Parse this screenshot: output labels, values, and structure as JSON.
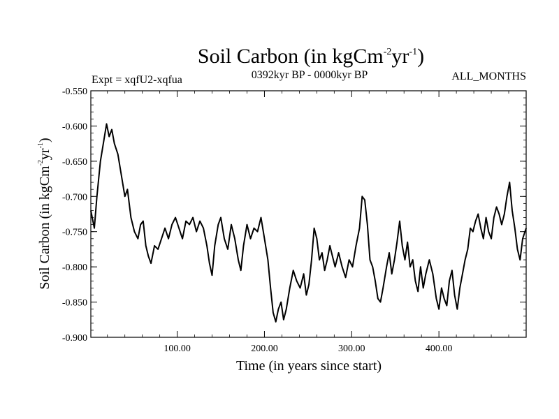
{
  "chart_data": {
    "type": "line",
    "title": {
      "main": "Soil Carbon (in kgCm",
      "sup1": "-2",
      "mid": "yr",
      "sup2": "-1",
      "end": ")"
    },
    "subtitle_left": "Expt = xqfU2-xqfua",
    "subtitle_center": "0392kyr BP - 0000kyr BP",
    "subtitle_right": "ALL_MONTHS",
    "xlabel": "Time (in years since start)",
    "ylabel": {
      "main": "Soil Carbon (in kgCm",
      "sup1": "-2",
      "mid": "yr",
      "sup2": "-1",
      "end": ")"
    },
    "xlim": [
      1,
      500
    ],
    "ylim": [
      -0.9,
      -0.55
    ],
    "xticks": [
      100,
      200,
      300,
      400
    ],
    "xtick_labels": [
      "100.00",
      "200.00",
      "300.00",
      "400.00"
    ],
    "yticks": [
      -0.55,
      -0.6,
      -0.65,
      -0.7,
      -0.75,
      -0.8,
      -0.85,
      -0.9
    ],
    "ytick_labels": [
      "-0.550",
      "-0.600",
      "-0.650",
      "-0.700",
      "-0.750",
      "-0.800",
      "-0.850",
      "-0.900"
    ],
    "series": [
      {
        "name": "Soil Carbon",
        "color": "#000000",
        "points": [
          [
            1,
            -0.72
          ],
          [
            5,
            -0.745
          ],
          [
            8,
            -0.7
          ],
          [
            12,
            -0.65
          ],
          [
            16,
            -0.62
          ],
          [
            19,
            -0.597
          ],
          [
            22,
            -0.615
          ],
          [
            25,
            -0.605
          ],
          [
            28,
            -0.625
          ],
          [
            32,
            -0.64
          ],
          [
            36,
            -0.67
          ],
          [
            40,
            -0.7
          ],
          [
            43,
            -0.69
          ],
          [
            47,
            -0.73
          ],
          [
            51,
            -0.75
          ],
          [
            55,
            -0.76
          ],
          [
            58,
            -0.74
          ],
          [
            61,
            -0.735
          ],
          [
            64,
            -0.77
          ],
          [
            67,
            -0.785
          ],
          [
            70,
            -0.795
          ],
          [
            74,
            -0.77
          ],
          [
            78,
            -0.775
          ],
          [
            82,
            -0.76
          ],
          [
            86,
            -0.745
          ],
          [
            90,
            -0.76
          ],
          [
            94,
            -0.74
          ],
          [
            98,
            -0.73
          ],
          [
            102,
            -0.745
          ],
          [
            106,
            -0.76
          ],
          [
            110,
            -0.735
          ],
          [
            114,
            -0.74
          ],
          [
            118,
            -0.73
          ],
          [
            122,
            -0.75
          ],
          [
            126,
            -0.735
          ],
          [
            130,
            -0.745
          ],
          [
            134,
            -0.77
          ],
          [
            137,
            -0.795
          ],
          [
            140,
            -0.812
          ],
          [
            143,
            -0.77
          ],
          [
            147,
            -0.74
          ],
          [
            150,
            -0.73
          ],
          [
            154,
            -0.76
          ],
          [
            158,
            -0.775
          ],
          [
            162,
            -0.74
          ],
          [
            166,
            -0.76
          ],
          [
            170,
            -0.79
          ],
          [
            173,
            -0.805
          ],
          [
            176,
            -0.77
          ],
          [
            180,
            -0.74
          ],
          [
            184,
            -0.76
          ],
          [
            188,
            -0.745
          ],
          [
            192,
            -0.75
          ],
          [
            196,
            -0.73
          ],
          [
            200,
            -0.76
          ],
          [
            204,
            -0.79
          ],
          [
            207,
            -0.83
          ],
          [
            210,
            -0.865
          ],
          [
            213,
            -0.878
          ],
          [
            216,
            -0.86
          ],
          [
            219,
            -0.85
          ],
          [
            222,
            -0.875
          ],
          [
            225,
            -0.86
          ],
          [
            229,
            -0.83
          ],
          [
            233,
            -0.805
          ],
          [
            237,
            -0.82
          ],
          [
            241,
            -0.83
          ],
          [
            245,
            -0.81
          ],
          [
            248,
            -0.84
          ],
          [
            251,
            -0.825
          ],
          [
            254,
            -0.79
          ],
          [
            257,
            -0.745
          ],
          [
            260,
            -0.76
          ],
          [
            263,
            -0.79
          ],
          [
            266,
            -0.78
          ],
          [
            269,
            -0.805
          ],
          [
            272,
            -0.79
          ],
          [
            275,
            -0.77
          ],
          [
            278,
            -0.785
          ],
          [
            281,
            -0.8
          ],
          [
            285,
            -0.78
          ],
          [
            289,
            -0.8
          ],
          [
            293,
            -0.815
          ],
          [
            297,
            -0.79
          ],
          [
            301,
            -0.8
          ],
          [
            305,
            -0.77
          ],
          [
            309,
            -0.745
          ],
          [
            312,
            -0.7
          ],
          [
            315,
            -0.705
          ],
          [
            318,
            -0.74
          ],
          [
            321,
            -0.79
          ],
          [
            324,
            -0.8
          ],
          [
            327,
            -0.82
          ],
          [
            330,
            -0.845
          ],
          [
            333,
            -0.85
          ],
          [
            336,
            -0.83
          ],
          [
            340,
            -0.8
          ],
          [
            343,
            -0.78
          ],
          [
            346,
            -0.81
          ],
          [
            349,
            -0.79
          ],
          [
            352,
            -0.765
          ],
          [
            355,
            -0.735
          ],
          [
            358,
            -0.77
          ],
          [
            361,
            -0.79
          ],
          [
            364,
            -0.765
          ],
          [
            367,
            -0.8
          ],
          [
            370,
            -0.79
          ],
          [
            373,
            -0.82
          ],
          [
            376,
            -0.835
          ],
          [
            379,
            -0.8
          ],
          [
            382,
            -0.83
          ],
          [
            385,
            -0.81
          ],
          [
            389,
            -0.79
          ],
          [
            393,
            -0.81
          ],
          [
            397,
            -0.845
          ],
          [
            400,
            -0.86
          ],
          [
            403,
            -0.83
          ],
          [
            406,
            -0.845
          ],
          [
            409,
            -0.855
          ],
          [
            412,
            -0.82
          ],
          [
            415,
            -0.805
          ],
          [
            418,
            -0.84
          ],
          [
            421,
            -0.86
          ],
          [
            424,
            -0.83
          ],
          [
            427,
            -0.81
          ],
          [
            430,
            -0.79
          ],
          [
            433,
            -0.775
          ],
          [
            436,
            -0.745
          ],
          [
            439,
            -0.75
          ],
          [
            442,
            -0.735
          ],
          [
            445,
            -0.725
          ],
          [
            448,
            -0.745
          ],
          [
            451,
            -0.76
          ],
          [
            454,
            -0.73
          ],
          [
            457,
            -0.75
          ],
          [
            460,
            -0.76
          ],
          [
            463,
            -0.73
          ],
          [
            466,
            -0.715
          ],
          [
            469,
            -0.725
          ],
          [
            472,
            -0.74
          ],
          [
            475,
            -0.725
          ],
          [
            478,
            -0.7
          ],
          [
            481,
            -0.68
          ],
          [
            484,
            -0.72
          ],
          [
            487,
            -0.745
          ],
          [
            490,
            -0.775
          ],
          [
            493,
            -0.79
          ],
          [
            496,
            -0.76
          ],
          [
            500,
            -0.745
          ]
        ]
      }
    ]
  }
}
